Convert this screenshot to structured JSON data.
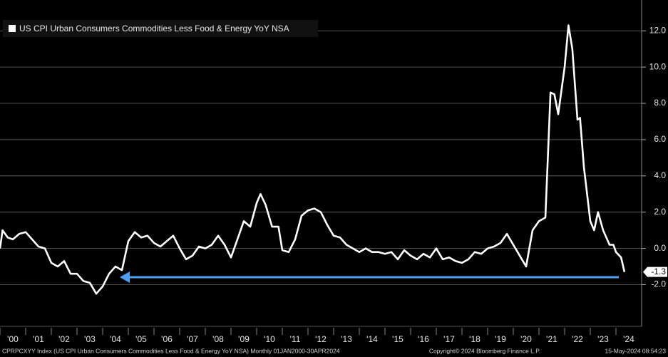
{
  "chart_data": {
    "type": "line",
    "legend_label": "US CPI Urban Consumers Commodities Less Food & Energy YoY NSA",
    "footer_left": "CPRPCXYY Index (US CPI Urban Consumers Commodities Less Food & Energy YoY NSA)  Monthly 01JAN2000-30APR2024",
    "footer_center": "Copyright© 2024 Bloomberg Finance L.P.",
    "footer_right": "15-May-2024 08:54:23",
    "x": [
      2000.0,
      2000.1,
      2000.3,
      2000.5,
      2000.75,
      2001.0,
      2001.25,
      2001.5,
      2001.75,
      2002.0,
      2002.25,
      2002.5,
      2002.75,
      2003.0,
      2003.25,
      2003.5,
      2003.75,
      2004.0,
      2004.25,
      2004.5,
      2004.75,
      2005.0,
      2005.25,
      2005.5,
      2005.75,
      2006.0,
      2006.25,
      2006.5,
      2006.75,
      2007.0,
      2007.25,
      2007.5,
      2007.75,
      2008.0,
      2008.25,
      2008.5,
      2008.75,
      2009.0,
      2009.25,
      2009.5,
      2009.75,
      2010.0,
      2010.15,
      2010.35,
      2010.6,
      2010.85,
      2011.0,
      2011.25,
      2011.5,
      2011.75,
      2012.0,
      2012.25,
      2012.5,
      2012.75,
      2013.0,
      2013.25,
      2013.5,
      2013.75,
      2014.0,
      2014.25,
      2014.5,
      2014.75,
      2015.0,
      2015.25,
      2015.5,
      2015.75,
      2016.0,
      2016.25,
      2016.5,
      2016.75,
      2017.0,
      2017.25,
      2017.5,
      2017.75,
      2018.0,
      2018.25,
      2018.5,
      2018.75,
      2019.0,
      2019.25,
      2019.5,
      2019.75,
      2020.0,
      2020.25,
      2020.5,
      2020.75,
      2021.0,
      2021.25,
      2021.45,
      2021.6,
      2021.75,
      2022.0,
      2022.15,
      2022.3,
      2022.5,
      2022.6,
      2022.75,
      2023.0,
      2023.15,
      2023.3,
      2023.5,
      2023.75,
      2023.9,
      2024.0,
      2024.2,
      2024.33
    ],
    "series": [
      {
        "name": "US CPI Urban Consumers Commodities Less Food & Energy YoY NSA",
        "color": "#ffffff",
        "values": [
          0.0,
          1.0,
          0.6,
          0.5,
          0.8,
          0.9,
          0.5,
          0.1,
          0.0,
          -0.8,
          -1.0,
          -0.7,
          -1.4,
          -1.4,
          -1.8,
          -1.9,
          -2.5,
          -2.1,
          -1.4,
          -1.0,
          -1.2,
          0.4,
          0.9,
          0.6,
          0.7,
          0.3,
          0.1,
          0.4,
          0.7,
          0.0,
          -0.6,
          -0.4,
          0.1,
          0.0,
          0.2,
          0.7,
          0.2,
          -0.5,
          0.5,
          1.5,
          1.2,
          2.5,
          3.0,
          2.4,
          1.2,
          1.2,
          -0.1,
          -0.2,
          0.5,
          1.8,
          2.1,
          2.2,
          2.0,
          1.3,
          0.7,
          0.6,
          0.2,
          0.0,
          -0.2,
          0.0,
          -0.2,
          -0.2,
          -0.3,
          -0.2,
          -0.6,
          -0.1,
          -0.4,
          -0.6,
          -0.3,
          -0.5,
          0.0,
          -0.6,
          -0.5,
          -0.7,
          -0.8,
          -0.6,
          -0.2,
          -0.3,
          0.0,
          0.1,
          0.3,
          0.8,
          0.2,
          -0.4,
          -1.0,
          1.0,
          1.5,
          1.7,
          8.6,
          8.5,
          7.4,
          10.0,
          12.3,
          11.0,
          7.1,
          7.2,
          4.5,
          1.5,
          1.0,
          2.0,
          1.0,
          0.2,
          0.2,
          -0.2,
          -0.5,
          -1.3
        ]
      }
    ],
    "xlim": [
      2000,
      2025
    ],
    "xticks": [
      {
        "value": 2000,
        "label": "'00"
      },
      {
        "value": 2001,
        "label": "'01"
      },
      {
        "value": 2002,
        "label": "'02"
      },
      {
        "value": 2003,
        "label": "'03"
      },
      {
        "value": 2004,
        "label": "'04"
      },
      {
        "value": 2005,
        "label": "'05"
      },
      {
        "value": 2006,
        "label": "'06"
      },
      {
        "value": 2007,
        "label": "'07"
      },
      {
        "value": 2008,
        "label": "'08"
      },
      {
        "value": 2009,
        "label": "'09"
      },
      {
        "value": 2010,
        "label": "'10"
      },
      {
        "value": 2011,
        "label": "'11"
      },
      {
        "value": 2012,
        "label": "'12"
      },
      {
        "value": 2013,
        "label": "'13"
      },
      {
        "value": 2014,
        "label": "'14"
      },
      {
        "value": 2015,
        "label": "'15"
      },
      {
        "value": 2016,
        "label": "'16"
      },
      {
        "value": 2017,
        "label": "'17"
      },
      {
        "value": 2018,
        "label": "'18"
      },
      {
        "value": 2019,
        "label": "'19"
      },
      {
        "value": 2020,
        "label": "'20"
      },
      {
        "value": 2021,
        "label": "'21"
      },
      {
        "value": 2022,
        "label": "'22"
      },
      {
        "value": 2023,
        "label": "'23"
      },
      {
        "value": 2024,
        "label": "'24"
      }
    ],
    "ylim": [
      -4.3,
      13.7
    ],
    "yticks": [
      {
        "value": -2,
        "label": "-2.0"
      },
      {
        "value": 0,
        "label": "0.0"
      },
      {
        "value": 2,
        "label": "2.0"
      },
      {
        "value": 4,
        "label": "4.0"
      },
      {
        "value": 6,
        "label": "6.0"
      },
      {
        "value": 8,
        "label": "8.0"
      },
      {
        "value": 10,
        "label": "10.0"
      },
      {
        "value": 12,
        "label": "12.0"
      }
    ],
    "grid": true
  }
}
